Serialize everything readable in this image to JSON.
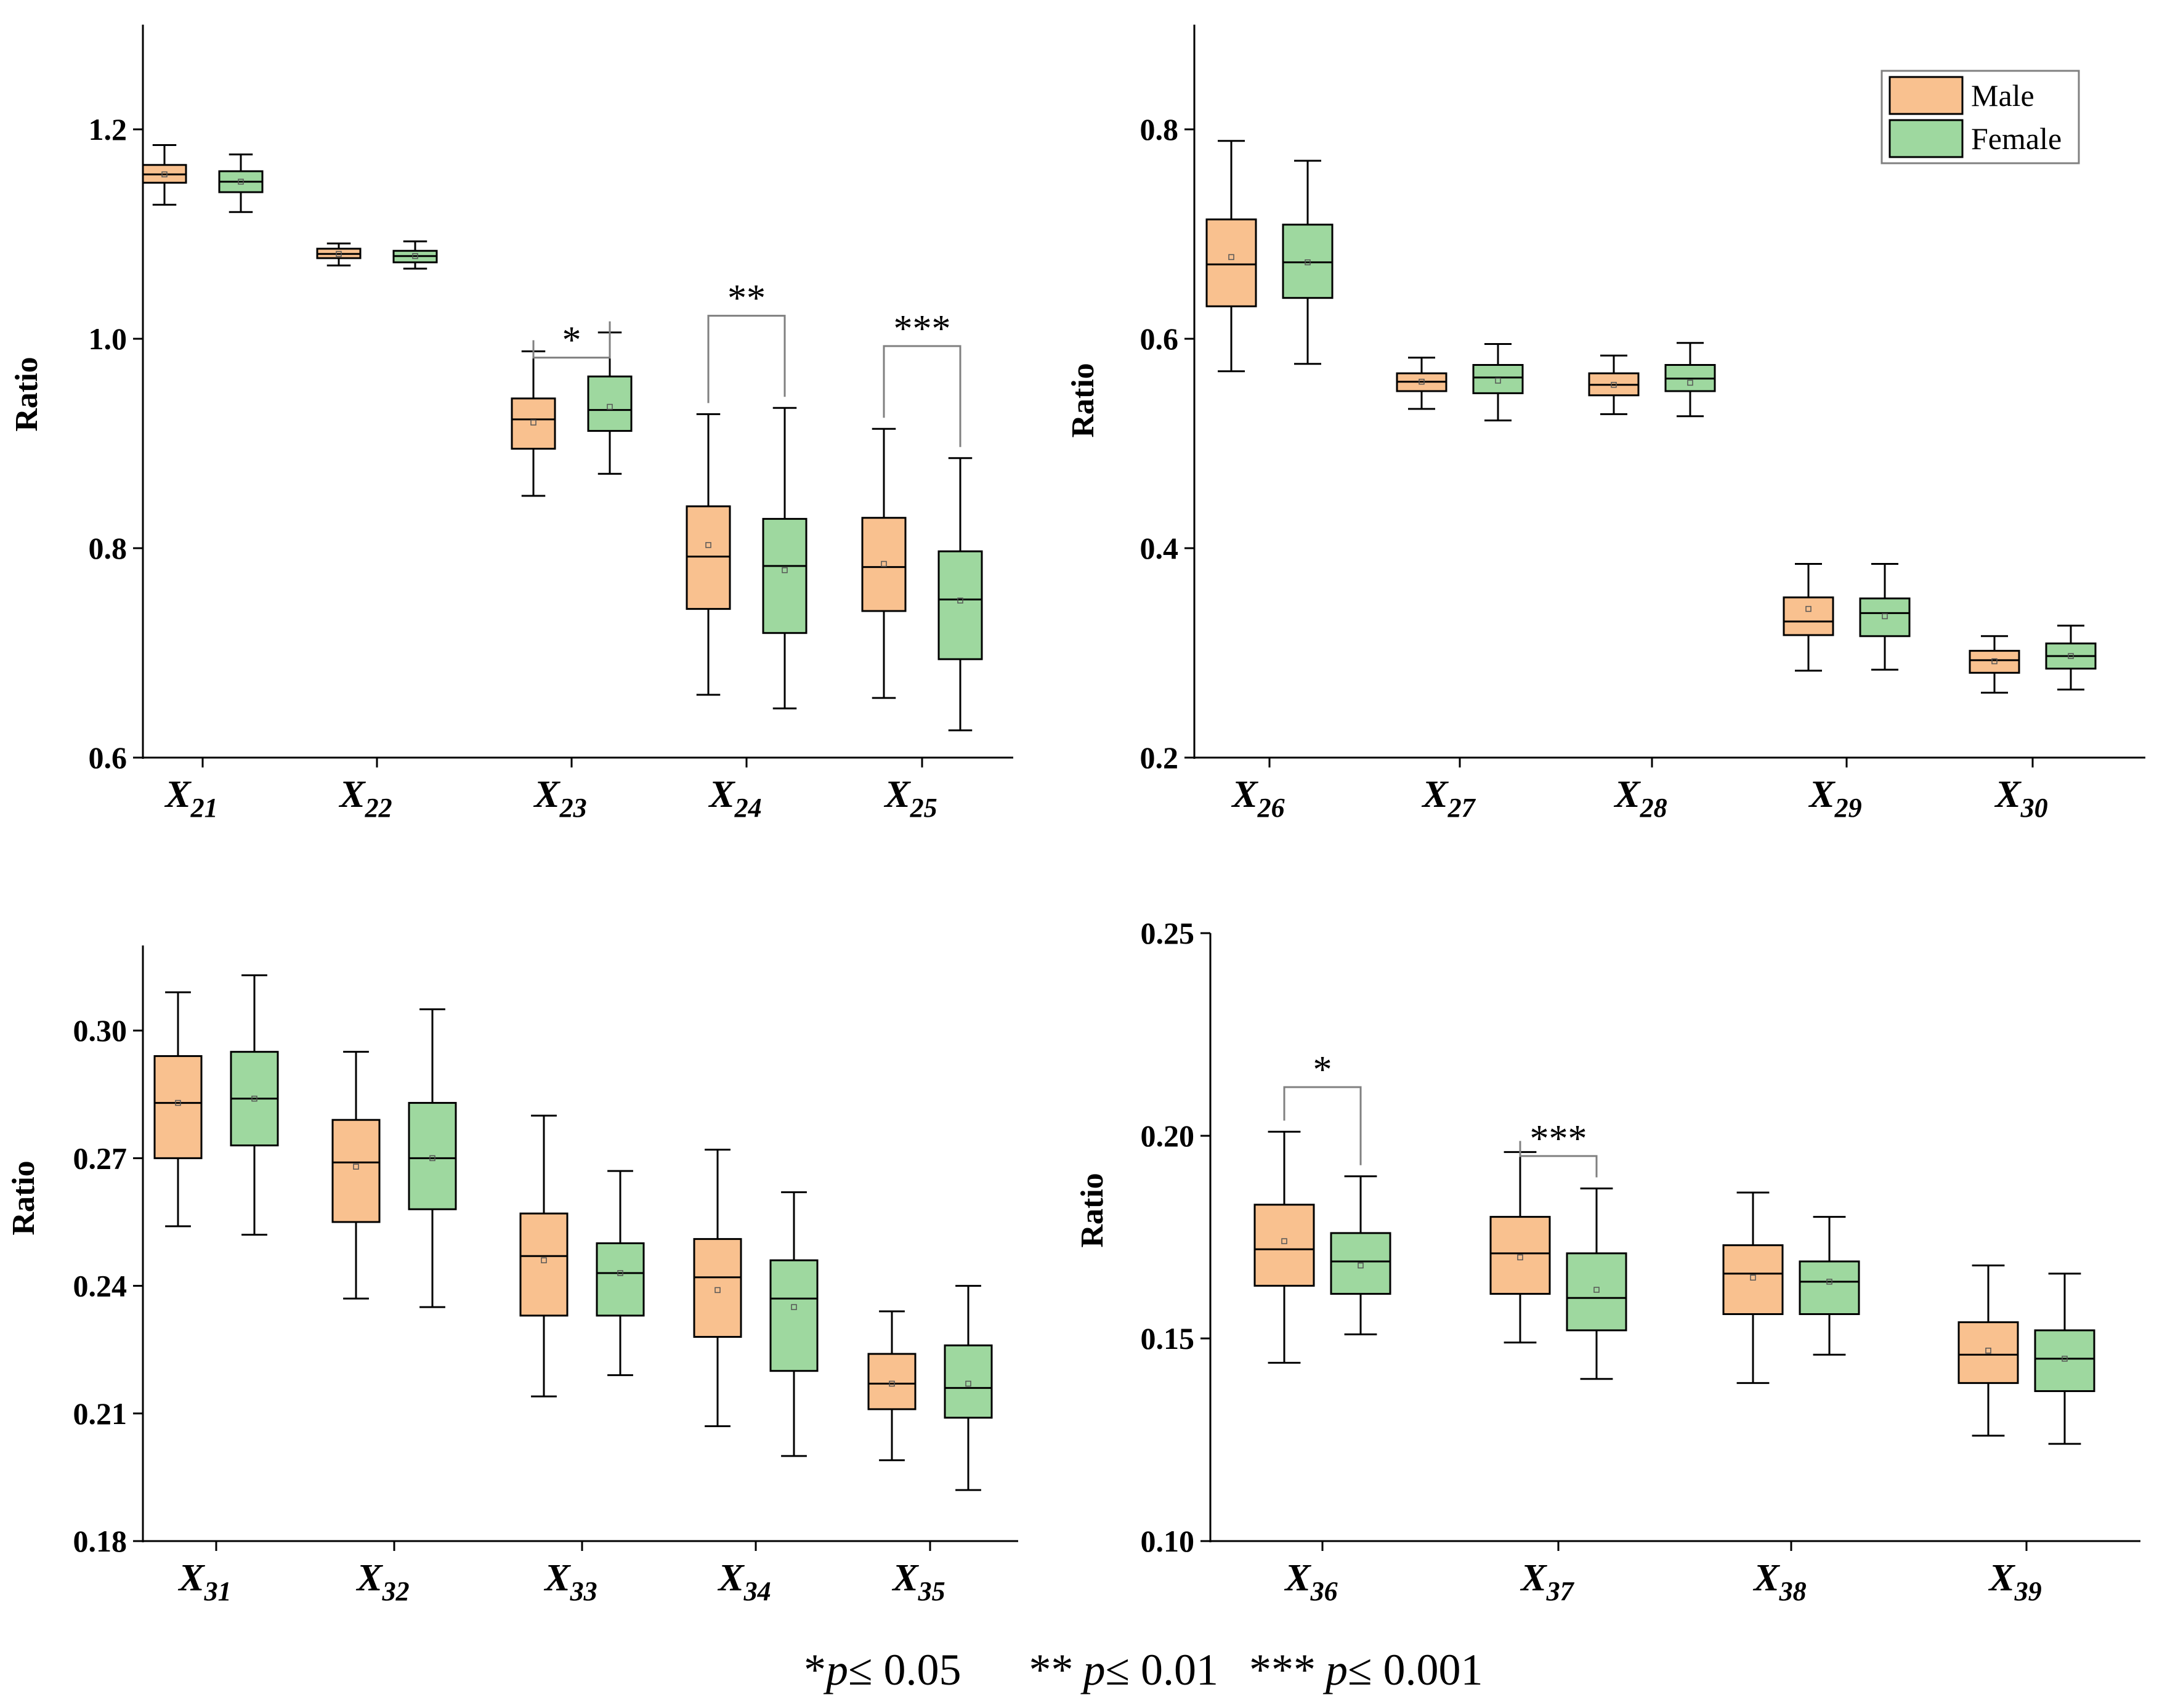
{
  "colors": {
    "male": "#f9c18f",
    "female": "#9ed89f",
    "axis": "#000000",
    "bracket": "#808080"
  },
  "legend": {
    "male": "Male",
    "female": "Female",
    "placement": "top-right of upper-right panel"
  },
  "footnote": {
    "p1_star": "*",
    "p1_text": "≤ 0.05",
    "p2_star": "**",
    "p2_text": "≤ 0.01",
    "p3_star": "***",
    "p3_text": "≤ 0.001",
    "p_letter": "p"
  },
  "chart_data": [
    {
      "type": "boxplot",
      "panel": "top-left",
      "ylabel": "Ratio",
      "ylim": [
        0.6,
        1.3
      ],
      "yticks": [
        0.6,
        0.8,
        1.0,
        1.2
      ],
      "ytick_labels": [
        "0.6",
        "0.8",
        "1.0",
        "1.2"
      ],
      "categories": [
        {
          "main": "X",
          "sub": "21"
        },
        {
          "main": "X",
          "sub": "22"
        },
        {
          "main": "X",
          "sub": "23"
        },
        {
          "main": "X",
          "sub": "24"
        },
        {
          "main": "X",
          "sub": "25"
        }
      ],
      "series": [
        {
          "name": "Male",
          "boxes": [
            {
              "min": 1.128,
              "q1": 1.149,
              "median": 1.157,
              "q3": 1.166,
              "max": 1.185,
              "mean": 1.157
            },
            {
              "min": 1.07,
              "q1": 1.077,
              "median": 1.081,
              "q3": 1.086,
              "max": 1.091,
              "mean": 1.081
            },
            {
              "min": 0.85,
              "q1": 0.895,
              "median": 0.923,
              "q3": 0.943,
              "max": 0.988,
              "mean": 0.92
            },
            {
              "min": 0.66,
              "q1": 0.742,
              "median": 0.792,
              "q3": 0.84,
              "max": 0.928,
              "mean": 0.803
            },
            {
              "min": 0.657,
              "q1": 0.74,
              "median": 0.782,
              "q3": 0.829,
              "max": 0.914,
              "mean": 0.785
            }
          ]
        },
        {
          "name": "Female",
          "boxes": [
            {
              "min": 1.121,
              "q1": 1.14,
              "median": 1.15,
              "q3": 1.16,
              "max": 1.176,
              "mean": 1.15
            },
            {
              "min": 1.067,
              "q1": 1.073,
              "median": 1.079,
              "q3": 1.084,
              "max": 1.093,
              "mean": 1.079
            },
            {
              "min": 0.871,
              "q1": 0.912,
              "median": 0.932,
              "q3": 0.964,
              "max": 1.006,
              "mean": 0.935
            },
            {
              "min": 0.647,
              "q1": 0.719,
              "median": 0.783,
              "q3": 0.828,
              "max": 0.934,
              "mean": 0.779
            },
            {
              "min": 0.626,
              "q1": 0.694,
              "median": 0.751,
              "q3": 0.797,
              "max": 0.886,
              "mean": 0.75
            }
          ]
        }
      ],
      "significance": [
        {
          "category_index": 2,
          "label": "*",
          "y": 0.982
        },
        {
          "category_index": 3,
          "label": "**",
          "y": 1.022
        },
        {
          "category_index": 4,
          "label": "***",
          "y": 0.993
        }
      ]
    },
    {
      "type": "boxplot",
      "panel": "top-right",
      "ylabel": "Ratio",
      "ylim": [
        0.2,
        0.9
      ],
      "yticks": [
        0.2,
        0.4,
        0.6,
        0.8
      ],
      "ytick_labels": [
        "0.2",
        "0.4",
        "0.6",
        "0.8"
      ],
      "categories": [
        {
          "main": "X",
          "sub": "26"
        },
        {
          "main": "X",
          "sub": "27"
        },
        {
          "main": "X",
          "sub": "28"
        },
        {
          "main": "X",
          "sub": "29"
        },
        {
          "main": "X",
          "sub": "30"
        }
      ],
      "series": [
        {
          "name": "Male",
          "boxes": [
            {
              "min": 0.569,
              "q1": 0.631,
              "median": 0.671,
              "q3": 0.714,
              "max": 0.789,
              "mean": 0.678
            },
            {
              "min": 0.533,
              "q1": 0.55,
              "median": 0.559,
              "q3": 0.567,
              "max": 0.582,
              "mean": 0.559
            },
            {
              "min": 0.528,
              "q1": 0.546,
              "median": 0.556,
              "q3": 0.567,
              "max": 0.584,
              "mean": 0.556
            },
            {
              "min": 0.283,
              "q1": 0.317,
              "median": 0.33,
              "q3": 0.353,
              "max": 0.385,
              "mean": 0.342
            },
            {
              "min": 0.262,
              "q1": 0.281,
              "median": 0.293,
              "q3": 0.302,
              "max": 0.316,
              "mean": 0.292
            }
          ]
        },
        {
          "name": "Female",
          "boxes": [
            {
              "min": 0.576,
              "q1": 0.639,
              "median": 0.673,
              "q3": 0.709,
              "max": 0.77,
              "mean": 0.673
            },
            {
              "min": 0.522,
              "q1": 0.548,
              "median": 0.563,
              "q3": 0.575,
              "max": 0.595,
              "mean": 0.56
            },
            {
              "min": 0.526,
              "q1": 0.55,
              "median": 0.562,
              "q3": 0.575,
              "max": 0.596,
              "mean": 0.558
            },
            {
              "min": 0.284,
              "q1": 0.316,
              "median": 0.338,
              "q3": 0.352,
              "max": 0.385,
              "mean": 0.335
            },
            {
              "min": 0.265,
              "q1": 0.285,
              "median": 0.297,
              "q3": 0.309,
              "max": 0.326,
              "mean": 0.297
            }
          ]
        }
      ],
      "significance": []
    },
    {
      "type": "boxplot",
      "panel": "bottom-left",
      "ylabel": "Ratio",
      "ylim": [
        0.18,
        0.32
      ],
      "yticks": [
        0.18,
        0.21,
        0.24,
        0.27,
        0.3
      ],
      "ytick_labels": [
        "0.18",
        "0.21",
        "0.24",
        "0.27",
        "0.30"
      ],
      "categories": [
        {
          "main": "X",
          "sub": "31"
        },
        {
          "main": "X",
          "sub": "32"
        },
        {
          "main": "X",
          "sub": "33"
        },
        {
          "main": "X",
          "sub": "34"
        },
        {
          "main": "X",
          "sub": "35"
        }
      ],
      "series": [
        {
          "name": "Male",
          "boxes": [
            {
              "min": 0.254,
              "q1": 0.27,
              "median": 0.283,
              "q3": 0.294,
              "max": 0.309,
              "mean": 0.283
            },
            {
              "min": 0.237,
              "q1": 0.255,
              "median": 0.269,
              "q3": 0.279,
              "max": 0.295,
              "mean": 0.268
            },
            {
              "min": 0.214,
              "q1": 0.233,
              "median": 0.247,
              "q3": 0.257,
              "max": 0.28,
              "mean": 0.246
            },
            {
              "min": 0.207,
              "q1": 0.228,
              "median": 0.242,
              "q3": 0.251,
              "max": 0.272,
              "mean": 0.239
            },
            {
              "min": 0.199,
              "q1": 0.211,
              "median": 0.217,
              "q3": 0.224,
              "max": 0.234,
              "mean": 0.217
            }
          ]
        },
        {
          "name": "Female",
          "boxes": [
            {
              "min": 0.252,
              "q1": 0.273,
              "median": 0.284,
              "q3": 0.295,
              "max": 0.313,
              "mean": 0.284
            },
            {
              "min": 0.235,
              "q1": 0.258,
              "median": 0.27,
              "q3": 0.283,
              "max": 0.305,
              "mean": 0.27
            },
            {
              "min": 0.219,
              "q1": 0.233,
              "median": 0.243,
              "q3": 0.25,
              "max": 0.267,
              "mean": 0.243
            },
            {
              "min": 0.2,
              "q1": 0.22,
              "median": 0.237,
              "q3": 0.246,
              "max": 0.262,
              "mean": 0.235
            },
            {
              "min": 0.192,
              "q1": 0.209,
              "median": 0.216,
              "q3": 0.226,
              "max": 0.24,
              "mean": 0.217
            }
          ]
        }
      ],
      "significance": []
    },
    {
      "type": "boxplot",
      "panel": "bottom-right",
      "ylabel": "Ratio",
      "ylim": [
        0.1,
        0.25
      ],
      "yticks": [
        0.1,
        0.15,
        0.2,
        0.25
      ],
      "ytick_labels": [
        "0.10",
        "0.15",
        "0.20",
        "0.25"
      ],
      "categories": [
        {
          "main": "X",
          "sub": "36"
        },
        {
          "main": "X",
          "sub": "37"
        },
        {
          "main": "X",
          "sub": "38"
        },
        {
          "main": "X",
          "sub": "39"
        }
      ],
      "series": [
        {
          "name": "Male",
          "boxes": [
            {
              "min": 0.144,
              "q1": 0.163,
              "median": 0.172,
              "q3": 0.183,
              "max": 0.201,
              "mean": 0.174
            },
            {
              "min": 0.149,
              "q1": 0.161,
              "median": 0.171,
              "q3": 0.18,
              "max": 0.196,
              "mean": 0.17
            },
            {
              "min": 0.139,
              "q1": 0.156,
              "median": 0.166,
              "q3": 0.173,
              "max": 0.186,
              "mean": 0.165
            },
            {
              "min": 0.126,
              "q1": 0.139,
              "median": 0.146,
              "q3": 0.154,
              "max": 0.168,
              "mean": 0.147
            }
          ]
        },
        {
          "name": "Female",
          "boxes": [
            {
              "min": 0.151,
              "q1": 0.161,
              "median": 0.169,
              "q3": 0.176,
              "max": 0.19,
              "mean": 0.168
            },
            {
              "min": 0.14,
              "q1": 0.152,
              "median": 0.16,
              "q3": 0.171,
              "max": 0.187,
              "mean": 0.162
            },
            {
              "min": 0.146,
              "q1": 0.156,
              "median": 0.164,
              "q3": 0.169,
              "max": 0.18,
              "mean": 0.164
            },
            {
              "min": 0.124,
              "q1": 0.137,
              "median": 0.145,
              "q3": 0.152,
              "max": 0.166,
              "mean": 0.145
            }
          ]
        }
      ],
      "significance": [
        {
          "category_index": 0,
          "label": "*",
          "y": 0.212
        },
        {
          "category_index": 1,
          "label": "***",
          "y": 0.195
        }
      ]
    }
  ]
}
